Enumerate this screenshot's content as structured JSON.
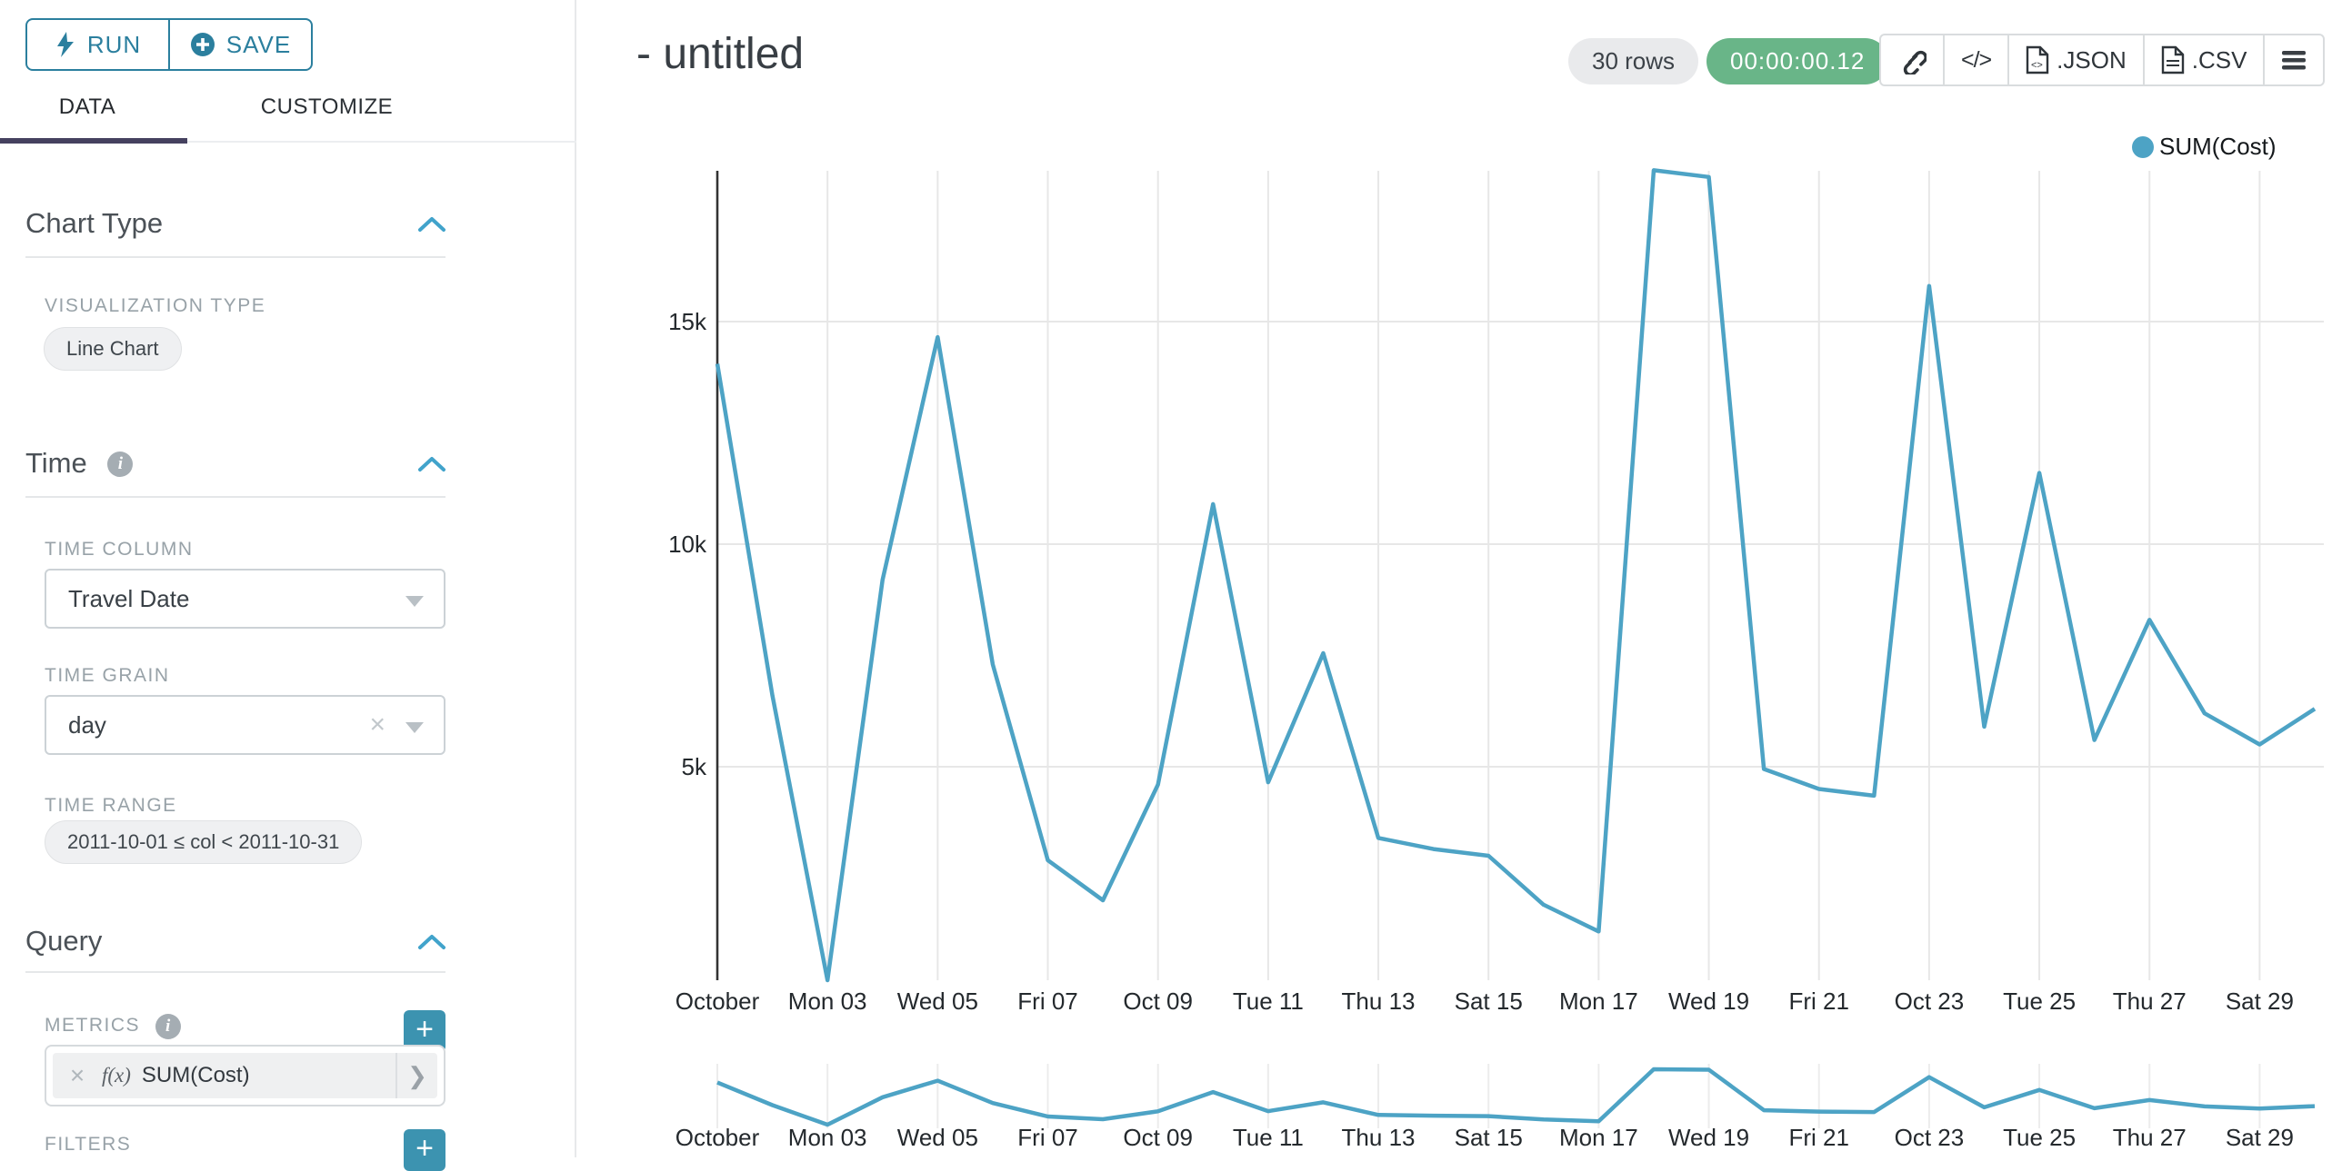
{
  "sidebar": {
    "run_label": "RUN",
    "save_label": "SAVE",
    "tabs": {
      "data": "DATA",
      "customize": "CUSTOMIZE"
    },
    "chart_type": {
      "title": "Chart Type",
      "viz_type_label": "VISUALIZATION TYPE",
      "viz_type_value": "Line Chart"
    },
    "time": {
      "title": "Time",
      "time_column_label": "TIME COLUMN",
      "time_column_value": "Travel Date",
      "time_grain_label": "TIME GRAIN",
      "time_grain_value": "day",
      "time_range_label": "TIME RANGE",
      "time_range_value": "2011-10-01 ≤ col < 2011-10-31"
    },
    "query": {
      "title": "Query",
      "metrics_label": "METRICS",
      "metric_fx": "f(x)",
      "metric_value": "SUM(Cost)",
      "filters_label": "FILTERS"
    }
  },
  "header": {
    "title": "- untitled",
    "rows_badge": "30 rows",
    "timer": "00:00:00.12",
    "json_label": ".JSON",
    "csv_label": ".CSV"
  },
  "legend": {
    "label": "SUM(Cost)"
  },
  "chart_data": {
    "type": "line",
    "title": "",
    "xlabel": "",
    "ylabel": "",
    "legend_position": "top-right",
    "grid": true,
    "color": "#4DA3C5",
    "series": [
      {
        "name": "SUM(Cost)",
        "dates": [
          "2011-10-01",
          "2011-10-02",
          "2011-10-03",
          "2011-10-04",
          "2011-10-05",
          "2011-10-06",
          "2011-10-07",
          "2011-10-08",
          "2011-10-09",
          "2011-10-10",
          "2011-10-11",
          "2011-10-12",
          "2011-10-13",
          "2011-10-14",
          "2011-10-15",
          "2011-10-16",
          "2011-10-17",
          "2011-10-18",
          "2011-10-19",
          "2011-10-20",
          "2011-10-21",
          "2011-10-22",
          "2011-10-23",
          "2011-10-24",
          "2011-10-25",
          "2011-10-26",
          "2011-10-27",
          "2011-10-28",
          "2011-10-29",
          "2011-10-30"
        ],
        "values": [
          14050,
          6600,
          200,
          9200,
          14650,
          7300,
          2900,
          2000,
          4600,
          10900,
          4650,
          7550,
          3400,
          3150,
          3000,
          1900,
          1300,
          18400,
          18250,
          4950,
          4500,
          4350,
          15800,
          5900,
          11600,
          5600,
          8300,
          6200,
          5500,
          6300
        ]
      }
    ],
    "x_tick_labels": [
      "October",
      "Mon 03",
      "Wed 05",
      "Fri 07",
      "Oct 09",
      "Tue 11",
      "Thu 13",
      "Sat 15",
      "Mon 17",
      "Wed 19",
      "Fri 21",
      "Oct 23",
      "Tue 25",
      "Thu 27",
      "Sat 29"
    ],
    "y_ticks": [
      {
        "value": 5000,
        "label": "5k"
      },
      {
        "value": 10000,
        "label": "10k"
      },
      {
        "value": 15000,
        "label": "15k"
      }
    ],
    "ylim": [
      200,
      18400
    ],
    "has_brush_minichart": true
  }
}
